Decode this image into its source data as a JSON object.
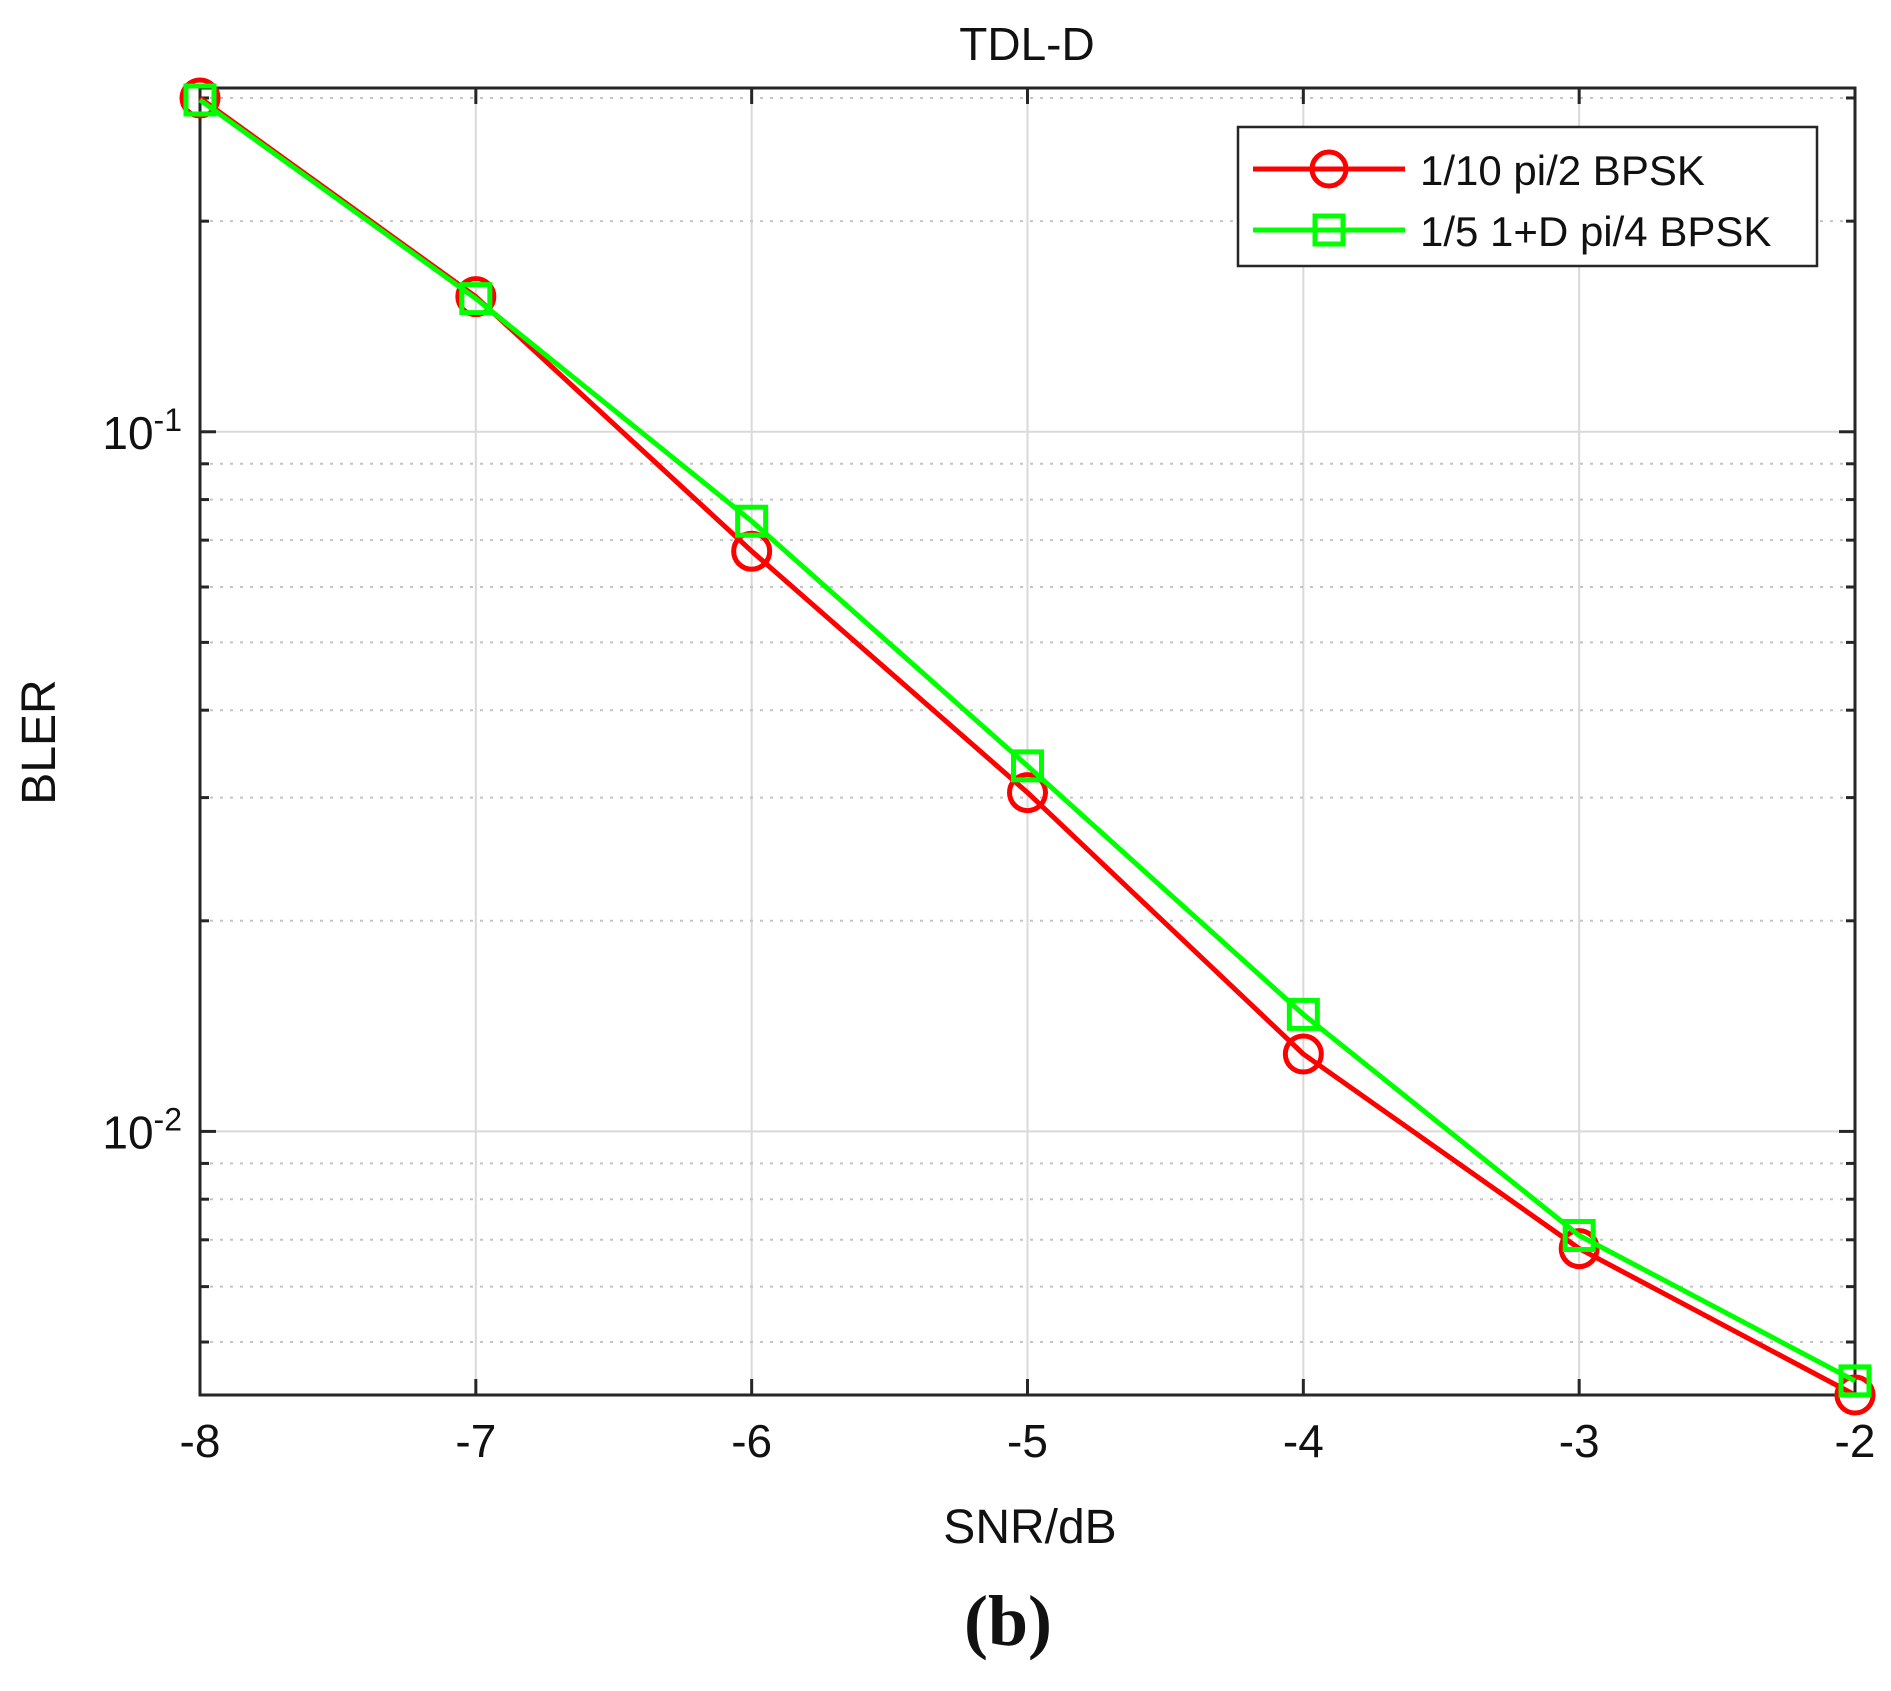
{
  "chart_data": {
    "type": "line",
    "title": "TDL-D",
    "xlabel": "SNR/dB",
    "ylabel": "BLER",
    "yscale": "log",
    "xlim": [
      -8,
      -2
    ],
    "ylim": [
      0.0042,
      0.31
    ],
    "grid": true,
    "x": [
      -8,
      -7,
      -6,
      -5,
      -4,
      -3,
      -2
    ],
    "xticks": [
      "-8",
      "-7",
      "-6",
      "-5",
      "-4",
      "-3",
      "-2"
    ],
    "yticks": [
      {
        "base": "10",
        "exp": "-1",
        "value": 0.1
      },
      {
        "base": "10",
        "exp": "-2",
        "value": 0.01
      }
    ],
    "series": [
      {
        "name": "1/10 pi/2 BPSK",
        "color": "#ff0000",
        "marker": "circle",
        "values": [
          0.3,
          0.156,
          0.0675,
          0.0305,
          0.0129,
          0.0068,
          0.0042
        ]
      },
      {
        "name": "1/5 1+D pi/4 BPSK",
        "color": "#00ff00",
        "marker": "square",
        "values": [
          0.298,
          0.155,
          0.0745,
          0.0333,
          0.0147,
          0.0071,
          0.0044
        ]
      }
    ],
    "legend_position": "top-right",
    "caption": "(b)"
  }
}
